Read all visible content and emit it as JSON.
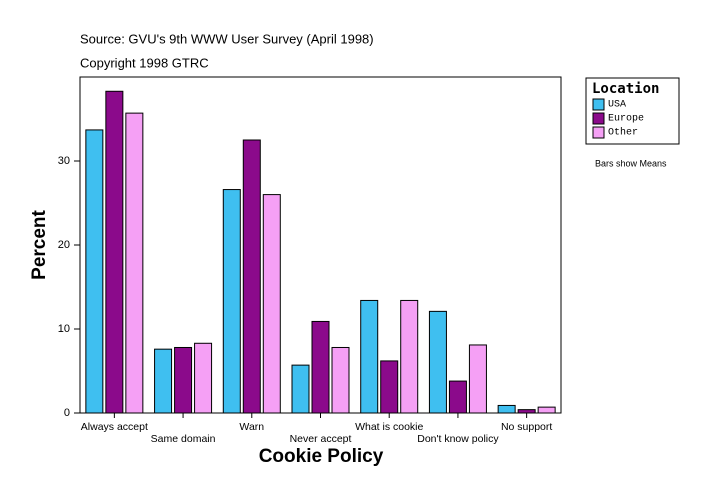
{
  "chart_data": {
    "type": "bar",
    "title": "Source: GVU's 9th WWW User Survey (April 1998)",
    "subtitle": "Copyright 1998 GTRC",
    "x_label": "Cookie Policy",
    "y_label": "Percent",
    "legend_title": "Location",
    "note": "Bars show Means",
    "categories": [
      "Always accept",
      "Same domain",
      "Warn",
      "Never accept",
      "What is cookie",
      "Don't know policy",
      "No support"
    ],
    "series": [
      {
        "name": "USA",
        "color": "#3fbff0",
        "values": [
          33.7,
          7.6,
          26.6,
          5.7,
          13.4,
          12.1,
          0.9
        ]
      },
      {
        "name": "Europe",
        "color": "#8b0a8b",
        "values": [
          38.3,
          7.8,
          32.5,
          10.9,
          6.2,
          3.8,
          0.4
        ]
      },
      {
        "name": "Other",
        "color": "#f5a0f5",
        "values": [
          35.7,
          8.3,
          26.0,
          7.8,
          13.4,
          8.1,
          0.7
        ]
      }
    ],
    "ylim": [
      0,
      40
    ],
    "yticks": [
      0,
      10,
      20,
      30
    ],
    "grid": false
  }
}
